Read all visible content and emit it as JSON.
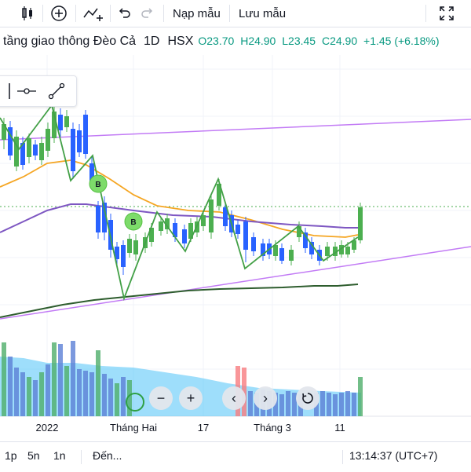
{
  "toolbar": {
    "load_label": "Nạp mẫu",
    "save_label": "Lưu mẫu"
  },
  "legend": {
    "symbol_title": "tầng giao thông Đèo Cả",
    "interval": "1D",
    "exchange": "HSX",
    "open": "O23.70",
    "high": "H24.90",
    "low": "L23.45",
    "close": "C24.90",
    "change": "+1.45 (+6.18%)",
    "up_color": "#26a69a"
  },
  "chart": {
    "marker_buy": "B",
    "x_labels": [
      "2022",
      "Tháng Hai",
      "17",
      "Tháng 3",
      "11"
    ]
  },
  "bottom": {
    "range_1d": "1p",
    "range_5d": "5n",
    "range_1y": "1n",
    "goto_label": "Đến...",
    "clock": "13:14:37 (UTC+7)"
  },
  "colors": {
    "up": "#4caf50",
    "down": "#2962ff",
    "zigzag": "#43a047",
    "ma_short": "#f5a623",
    "ma_mid": "#7e57c2",
    "ma_long": "#2e5d2e",
    "channel": "#c27bf5",
    "volume_area": "#4fc3f7"
  }
}
